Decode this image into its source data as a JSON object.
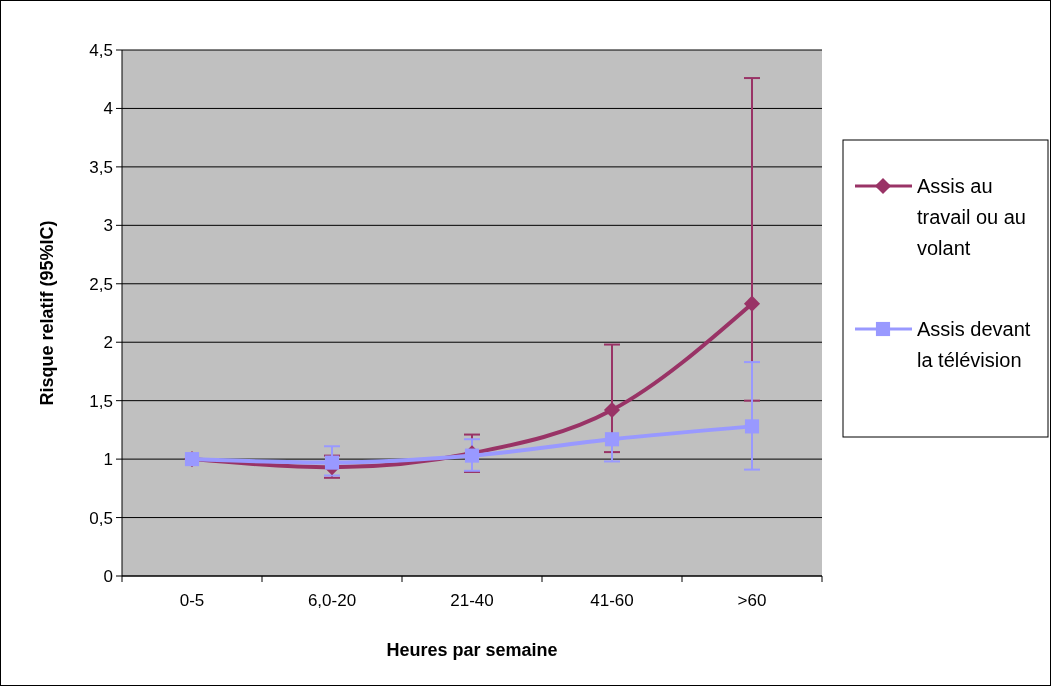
{
  "chart_data": {
    "type": "line",
    "xlabel": "Heures par semaine",
    "ylabel": "Risque relatif (95%IC)",
    "categories": [
      "0-5",
      "6,0-20",
      "21-40",
      "41-60",
      ">60"
    ],
    "series": [
      {
        "name": "Assis au travail ou au volant",
        "color": "#993366",
        "marker": "diamond",
        "values": [
          1.0,
          0.93,
          1.05,
          1.42,
          2.33
        ],
        "errors": [
          null,
          [
            0.84,
            1.03
          ],
          [
            0.89,
            1.21
          ],
          [
            1.06,
            1.98
          ],
          [
            1.5,
            4.26
          ]
        ]
      },
      {
        "name": "Assis devant la télévision",
        "color": "#9999ff",
        "marker": "square",
        "values": [
          1.0,
          0.97,
          1.03,
          1.17,
          1.28
        ],
        "errors": [
          null,
          [
            0.86,
            1.11
          ],
          [
            0.9,
            1.17
          ],
          [
            0.98,
            1.17
          ],
          [
            0.91,
            1.83
          ]
        ]
      }
    ],
    "ylim": [
      0,
      4.5
    ],
    "yticks": [
      0,
      {
        "value": 0.5,
        "label": "0,5"
      },
      1,
      {
        "value": 1.5,
        "label": "1,5"
      },
      2,
      {
        "value": 2.5,
        "label": "2,5"
      },
      3,
      {
        "value": 3.5,
        "label": "3,5"
      },
      4,
      {
        "value": 4.5,
        "label": "4,5"
      }
    ],
    "grid": "y",
    "legend": "right"
  }
}
